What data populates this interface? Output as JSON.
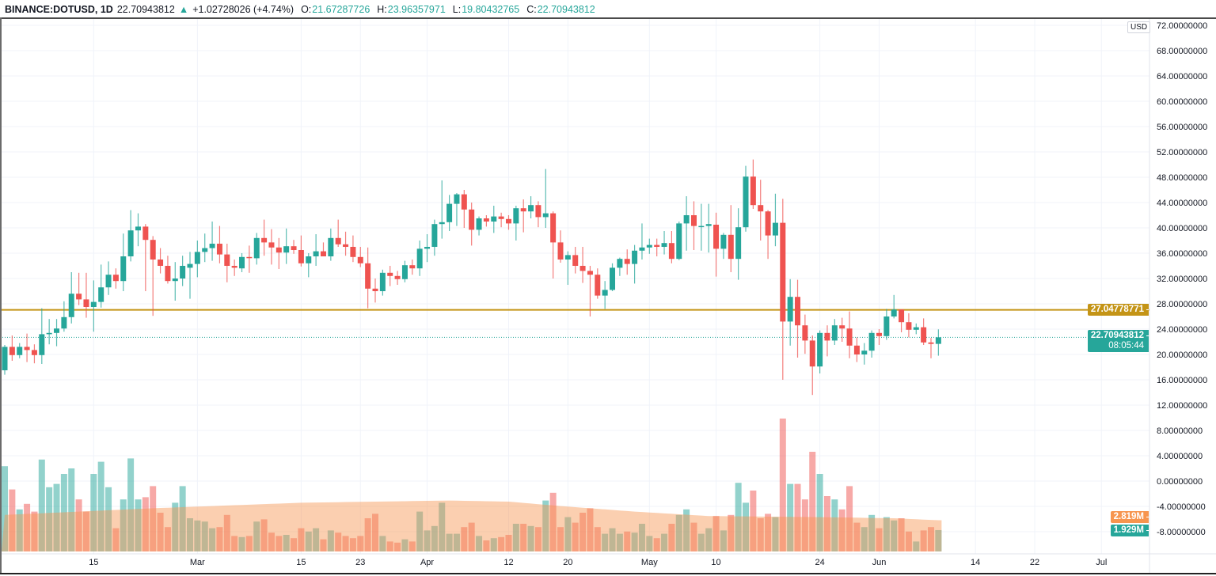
{
  "header": {
    "symbol": "BINANCE:DOTUSD, 1D",
    "last": "22.70943812",
    "change": "+1.02728026 (+4.74%)",
    "o_label": "O:",
    "o": "21.67287726",
    "h_label": "H:",
    "h": "23.96357971",
    "l_label": "L:",
    "l": "19.80432765",
    "c_label": "C:",
    "c": "22.70943812"
  },
  "price_scale": {
    "currency": "USD",
    "level_line": "27.04778771",
    "last_price": "22.70943812",
    "countdown": "08:05:44",
    "volume_ma": "2.819M",
    "volume_last": "1.929M"
  },
  "colors": {
    "up": "#26a69a",
    "down": "#ef5350",
    "level": "#c49416",
    "volume_ma": "#f7954f"
  },
  "chart_data": {
    "type": "candlestick",
    "title": "BINANCE:DOTUSD, 1D",
    "ylim": [
      -8,
      72
    ],
    "y_ticks": [
      "72.00000000",
      "68.00000000",
      "64.00000000",
      "60.00000000",
      "56.00000000",
      "52.00000000",
      "48.00000000",
      "44.00000000",
      "40.00000000",
      "36.00000000",
      "32.00000000",
      "28.00000000",
      "24.00000000",
      "20.00000000",
      "16.00000000",
      "12.00000000",
      "8.00000000",
      "4.00000000",
      "0.00000000",
      "-4.00000000",
      "-8.00000000"
    ],
    "x_ticks": [
      {
        "label": "15",
        "index": 12
      },
      {
        "label": "Mar",
        "index": 26
      },
      {
        "label": "15",
        "index": 40
      },
      {
        "label": "23",
        "index": 48
      },
      {
        "label": "Apr",
        "index": 57
      },
      {
        "label": "12",
        "index": 68
      },
      {
        "label": "20",
        "index": 76
      },
      {
        "label": "May",
        "index": 87
      },
      {
        "label": "10",
        "index": 96
      },
      {
        "label": "24",
        "index": 110
      },
      {
        "label": "Jun",
        "index": 118
      },
      {
        "label": "14",
        "index": 131
      },
      {
        "label": "22",
        "index": 139
      },
      {
        "label": "Jul",
        "index": 148
      }
    ],
    "horizontal_line": 27.04778771,
    "ohlc": [
      [
        17.5,
        21.5,
        16.8,
        21.2
      ],
      [
        21.2,
        23,
        19,
        19.9
      ],
      [
        19.9,
        21.8,
        19.4,
        21.2
      ],
      [
        21.2,
        23.3,
        18.8,
        20.7
      ],
      [
        20.7,
        21.6,
        18.6,
        19.9
      ],
      [
        19.9,
        27.3,
        18.5,
        23.2
      ],
      [
        23.2,
        25.6,
        21.6,
        23.4
      ],
      [
        23.4,
        25.6,
        21.3,
        24.1
      ],
      [
        24.1,
        28.4,
        23.6,
        25.9
      ],
      [
        25.9,
        33,
        24.9,
        29.6
      ],
      [
        29.6,
        32.9,
        27.8,
        28.7
      ],
      [
        28.7,
        32.9,
        25.8,
        27.5
      ],
      [
        27.5,
        31.7,
        23.6,
        28.3
      ],
      [
        28.3,
        34.2,
        27.4,
        30.6
      ],
      [
        30.6,
        34.7,
        29.4,
        32.6
      ],
      [
        32.6,
        33.6,
        30.4,
        31.6
      ],
      [
        31.6,
        39.1,
        30,
        35.5
      ],
      [
        35.5,
        42.8,
        34.7,
        39.6
      ],
      [
        39.6,
        42.3,
        37.1,
        40.2
      ],
      [
        40.2,
        40.6,
        30,
        38.1
      ],
      [
        38.1,
        38.7,
        26.1,
        35
      ],
      [
        35,
        36.8,
        32.8,
        34
      ],
      [
        34,
        35.6,
        31.2,
        31.6
      ],
      [
        31.6,
        34.6,
        28.5,
        32
      ],
      [
        32,
        35.6,
        30.8,
        34
      ],
      [
        33.7,
        36.2,
        28.8,
        34.3
      ],
      [
        34.3,
        38,
        32.2,
        36.2
      ],
      [
        36.2,
        39.1,
        34.6,
        36.8
      ],
      [
        36.8,
        41,
        34.8,
        37.5
      ],
      [
        37.5,
        40.3,
        34.4,
        35.8
      ],
      [
        35.8,
        37.5,
        31.4,
        34
      ],
      [
        34,
        35,
        32.4,
        33.7
      ],
      [
        33.6,
        36,
        33,
        35.4
      ],
      [
        35.4,
        37.2,
        32.9,
        35.3
      ],
      [
        35.2,
        39.2,
        34.2,
        38.4
      ],
      [
        38.4,
        41.3,
        35.6,
        37.7
      ],
      [
        37.7,
        39.8,
        34.2,
        36.9
      ],
      [
        36.9,
        38.4,
        33.5,
        36.1
      ],
      [
        36.1,
        39.9,
        34.3,
        37.1
      ],
      [
        37.1,
        38.1,
        35.9,
        36.5
      ],
      [
        36.5,
        38.8,
        33.9,
        34.4
      ],
      [
        34.4,
        36,
        32.2,
        35.5
      ],
      [
        35.5,
        39,
        34,
        36.3
      ],
      [
        36.3,
        37.7,
        35.7,
        35.5
      ],
      [
        35.5,
        39.9,
        34.8,
        38.4
      ],
      [
        38.4,
        41.3,
        37,
        37.4
      ],
      [
        37.4,
        39.4,
        35.6,
        37
      ],
      [
        37,
        38.8,
        34.6,
        35.4
      ],
      [
        35.4,
        37,
        33.8,
        34.4
      ],
      [
        34.4,
        36.9,
        27.3,
        30.4
      ],
      [
        30.4,
        32,
        28.2,
        30
      ],
      [
        30,
        33.4,
        29.3,
        32.9
      ],
      [
        32.9,
        34,
        30.8,
        32.4
      ],
      [
        32.4,
        33.2,
        31,
        31.9
      ],
      [
        31.9,
        34.8,
        31.4,
        34.1
      ],
      [
        34.1,
        35,
        32.6,
        33.6
      ],
      [
        33.6,
        38,
        32.4,
        36.7
      ],
      [
        36.7,
        39,
        34.6,
        37
      ],
      [
        37,
        41.3,
        35.6,
        40.6
      ],
      [
        40.6,
        47.5,
        38.3,
        40.9
      ],
      [
        40.9,
        45.2,
        39.5,
        43.8
      ],
      [
        43.8,
        45.5,
        40.3,
        45.3
      ],
      [
        45.3,
        46,
        40,
        42.9
      ],
      [
        42.9,
        44,
        37.2,
        39.7
      ],
      [
        39.7,
        41.8,
        38.8,
        41.5
      ],
      [
        41.5,
        42,
        40.2,
        41
      ],
      [
        41,
        43.5,
        39.2,
        41.8
      ],
      [
        41.8,
        42.4,
        40.1,
        41.4
      ],
      [
        41.4,
        42,
        39.7,
        40.7
      ],
      [
        40.7,
        43.5,
        38,
        43.1
      ],
      [
        43.1,
        44.5,
        39.3,
        42.6
      ],
      [
        42.6,
        45,
        41.5,
        43.6
      ],
      [
        43.6,
        44.2,
        40.1,
        41.7
      ],
      [
        41.7,
        49.3,
        40,
        42.3
      ],
      [
        42.3,
        42.6,
        32,
        37.7
      ],
      [
        37.7,
        39.6,
        34.5,
        35
      ],
      [
        35,
        36.3,
        31,
        35.7
      ],
      [
        35.7,
        37,
        32.8,
        34
      ],
      [
        34,
        37,
        31.3,
        33.2
      ],
      [
        33.2,
        34,
        26,
        32.6
      ],
      [
        32.6,
        33.6,
        28.8,
        29.3
      ],
      [
        29.3,
        31.6,
        27.2,
        30.2
      ],
      [
        30.2,
        34.4,
        30,
        33.7
      ],
      [
        33.7,
        35.3,
        32.4,
        35.1
      ],
      [
        35.1,
        36.6,
        32.6,
        34.3
      ],
      [
        34.3,
        37.3,
        31.2,
        36.4
      ],
      [
        36.4,
        40.7,
        35,
        36.9
      ],
      [
        36.9,
        38.3,
        35.9,
        37.3
      ],
      [
        37.3,
        38.3,
        35.5,
        37
      ],
      [
        37,
        39.5,
        35.8,
        37.6
      ],
      [
        37.6,
        39.5,
        34.4,
        35.1
      ],
      [
        35.1,
        41,
        34.9,
        40.7
      ],
      [
        40.7,
        45,
        36.4,
        42
      ],
      [
        42,
        44.2,
        36.5,
        40.3
      ],
      [
        40.3,
        43.8,
        36.4,
        40.3
      ],
      [
        40.3,
        43.8,
        36.1,
        40.6
      ],
      [
        40.5,
        42.4,
        32.3,
        36.7
      ],
      [
        36.7,
        39.2,
        35.1,
        38.9
      ],
      [
        38.9,
        43.6,
        33,
        35.1
      ],
      [
        35.1,
        43.1,
        31.8,
        40.1
      ],
      [
        40.1,
        49.8,
        39.4,
        48.1
      ],
      [
        48.1,
        50.8,
        43,
        43.6
      ],
      [
        43.6,
        47.6,
        38,
        42.6
      ],
      [
        42.6,
        42.8,
        35.1,
        38.8
      ],
      [
        38.8,
        45.4,
        37.1,
        40.8
      ],
      [
        40.8,
        44.6,
        16,
        25.2
      ],
      [
        25.2,
        31.9,
        21.4,
        29.1
      ],
      [
        29.1,
        31.8,
        19.5,
        24.6
      ],
      [
        24.6,
        26.3,
        20.1,
        22.2
      ],
      [
        22.2,
        23,
        13.6,
        18.1
      ],
      [
        18.1,
        23.8,
        17,
        23.4
      ],
      [
        23.4,
        24.6,
        19.7,
        22.2
      ],
      [
        22.2,
        25.6,
        21.5,
        24.6
      ],
      [
        24.6,
        25.8,
        22,
        24.1
      ],
      [
        24.1,
        26.8,
        19.4,
        21.4
      ],
      [
        21.4,
        22.7,
        18.8,
        20
      ],
      [
        20,
        21.8,
        18.4,
        20.6
      ],
      [
        20.6,
        23.8,
        19.5,
        23.4
      ],
      [
        23.4,
        24,
        21.5,
        22.9
      ],
      [
        22.9,
        27.2,
        22.3,
        26
      ],
      [
        26,
        29.4,
        25.7,
        27.1
      ],
      [
        27.1,
        27.1,
        23.5,
        25.1
      ],
      [
        25.1,
        26.5,
        22.7,
        23.9
      ],
      [
        23.9,
        24.9,
        23.2,
        24.3
      ],
      [
        24.3,
        25.7,
        21.5,
        21.9
      ],
      [
        21.9,
        22.6,
        19.4,
        21.67
      ],
      [
        21.67287726,
        23.96357971,
        19.80432765,
        22.70943812
      ]
    ],
    "volume_millions": [
      7.7,
      5.6,
      3.8,
      4.3,
      3.6,
      8.3,
      5.8,
      6.1,
      7.0,
      7.5,
      4.7,
      3.6,
      7.0,
      8.1,
      5.8,
      2.1,
      4.7,
      8.4,
      4.7,
      4.9,
      5.9,
      3.5,
      2.2,
      4.4,
      5.9,
      3.0,
      2.8,
      2.7,
      2.1,
      2.2,
      3.3,
      1.4,
      1.3,
      1.4,
      2.7,
      2.9,
      1.7,
      1.4,
      1.5,
      1.2,
      2.1,
      1.8,
      2.1,
      1.1,
      1.9,
      1.7,
      1.4,
      1.2,
      1.4,
      3.0,
      3.4,
      1.4,
      0.9,
      0.8,
      1.1,
      0.9,
      3.6,
      1.9,
      2.3,
      4.4,
      1.6,
      1.6,
      2.2,
      2.6,
      1.4,
      1.0,
      1.2,
      1.3,
      1.5,
      2.5,
      2.5,
      2.3,
      2.2,
      4.6,
      5.3,
      2.2,
      3.1,
      2.6,
      3.5,
      3.9,
      2.2,
      1.6,
      2.1,
      1.6,
      1.8,
      1.7,
      2.5,
      1.4,
      1.2,
      1.6,
      2.5,
      3.3,
      3.8,
      2.6,
      1.6,
      2.1,
      3.2,
      1.9,
      3.3,
      6.2,
      4.4,
      5.5,
      3.0,
      3.4,
      3.1,
      12.0,
      6.1,
      6.1,
      4.7,
      9.0,
      7.0,
      5.0,
      4.7,
      3.8,
      5.9,
      2.6,
      2.2,
      3.3,
      2.1,
      3.1,
      2.8,
      3.0,
      1.8,
      0.9,
      1.9,
      2.2,
      1.929
    ],
    "volume_ma_anchors": [
      [
        0,
        3.3
      ],
      [
        20,
        3.9
      ],
      [
        40,
        4.4
      ],
      [
        60,
        4.6
      ],
      [
        68,
        4.5
      ],
      [
        75,
        4.1
      ],
      [
        85,
        3.6
      ],
      [
        95,
        3.2
      ],
      [
        110,
        3.1
      ],
      [
        120,
        3.0
      ],
      [
        126,
        2.819
      ]
    ]
  }
}
